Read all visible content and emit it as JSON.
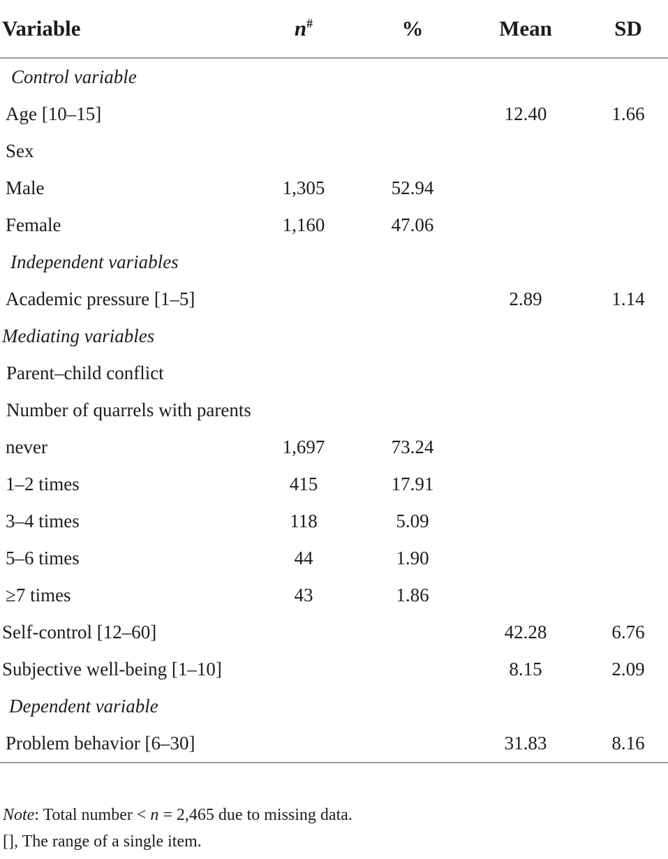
{
  "table": {
    "columns": [
      {
        "label": "Variable"
      },
      {
        "label": "n",
        "sup": "#"
      },
      {
        "label": "%"
      },
      {
        "label": "Mean"
      },
      {
        "label": "SD"
      }
    ],
    "rows": [
      {
        "label": "Control variable",
        "kind": "section",
        "indent": 16,
        "n": "",
        "pct": "",
        "mean": "",
        "sd": ""
      },
      {
        "label": "Age [10–15]",
        "kind": "item",
        "indent": 8,
        "n": "",
        "pct": "",
        "mean": "12.40",
        "sd": "1.66"
      },
      {
        "label": "Sex",
        "kind": "item",
        "indent": 8,
        "n": "",
        "pct": "",
        "mean": "",
        "sd": ""
      },
      {
        "label": "Male",
        "kind": "item",
        "indent": 8,
        "n": "1,305",
        "pct": "52.94",
        "mean": "",
        "sd": ""
      },
      {
        "label": "Female",
        "kind": "item",
        "indent": 8,
        "n": "1,160",
        "pct": "47.06",
        "mean": "",
        "sd": ""
      },
      {
        "label": "Independent variables",
        "kind": "section",
        "indent": 15,
        "n": "",
        "pct": "",
        "mean": "",
        "sd": ""
      },
      {
        "label": "Academic pressure [1–5]",
        "kind": "item",
        "indent": 8,
        "n": "",
        "pct": "",
        "mean": "2.89",
        "sd": "1.14"
      },
      {
        "label": "Mediating variables",
        "kind": "section",
        "indent": 3,
        "n": "",
        "pct": "",
        "mean": "",
        "sd": ""
      },
      {
        "label": "Parent–child conflict",
        "kind": "item",
        "indent": 9,
        "n": "",
        "pct": "",
        "mean": "",
        "sd": ""
      },
      {
        "label": "Number of quarrels with parents",
        "kind": "item",
        "indent": 9,
        "n": "",
        "pct": "",
        "mean": "",
        "sd": ""
      },
      {
        "label": "never",
        "kind": "item",
        "indent": 8,
        "n": "1,697",
        "pct": "73.24",
        "mean": "",
        "sd": ""
      },
      {
        "label": "1–2 times",
        "kind": "item",
        "indent": 8,
        "n": "415",
        "pct": "17.91",
        "mean": "",
        "sd": ""
      },
      {
        "label": "3–4 times",
        "kind": "item",
        "indent": 8,
        "n": "118",
        "pct": "5.09",
        "mean": "",
        "sd": ""
      },
      {
        "label": "5–6 times",
        "kind": "item",
        "indent": 8,
        "n": "44",
        "pct": "1.90",
        "mean": "",
        "sd": ""
      },
      {
        "label": "≥7 times",
        "kind": "item",
        "indent": 8,
        "n": "43",
        "pct": "1.86",
        "mean": "",
        "sd": ""
      },
      {
        "label": "Self-control [12–60]",
        "kind": "item",
        "indent": 3,
        "n": "",
        "pct": "",
        "mean": "42.28",
        "sd": "6.76"
      },
      {
        "label": "Subjective well-being [1–10]",
        "kind": "item",
        "indent": 3,
        "n": "",
        "pct": "",
        "mean": "8.15",
        "sd": "2.09"
      },
      {
        "label": "Dependent variable",
        "kind": "section",
        "indent": 13,
        "n": "",
        "pct": "",
        "mean": "",
        "sd": ""
      },
      {
        "label": "Problem behavior [6–30]",
        "kind": "item",
        "indent": 8,
        "n": "",
        "pct": "",
        "mean": "31.83",
        "sd": "8.16"
      }
    ]
  },
  "footnotes": {
    "note_label": "Note",
    "note_text_1": ": Total number < ",
    "note_n": "n",
    "note_text_2": " = 2,465 due to missing data.",
    "range_note": "[], The range of a single item."
  },
  "colors": {
    "text": "#1c1c1c",
    "rule": "#9e9e9e",
    "background": "#ffffff"
  }
}
